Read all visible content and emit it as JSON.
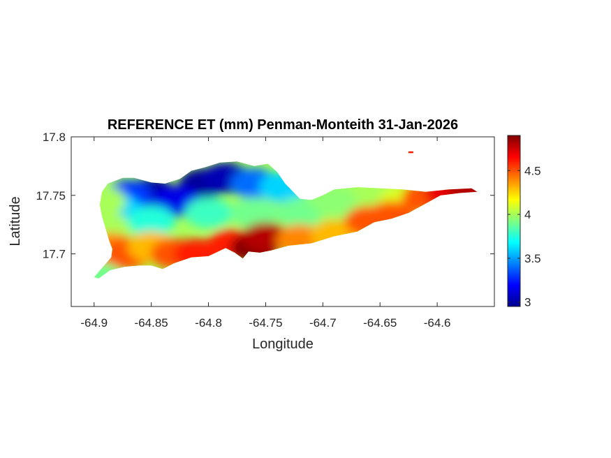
{
  "chart_data": {
    "type": "heatmap",
    "title": "REFERENCE ET (mm) Penman-Monteith 31-Jan-2026",
    "xlabel": "Longitude",
    "ylabel": "Latitude",
    "xlim": [
      -64.92,
      -64.55
    ],
    "ylim": [
      17.655,
      17.8
    ],
    "x_ticks": [
      -64.9,
      -64.85,
      -64.8,
      -64.75,
      -64.7,
      -64.65,
      -64.6
    ],
    "x_tick_labels": [
      "-64.9",
      "-64.85",
      "-64.8",
      "-64.75",
      "-64.7",
      "-64.65",
      "-64.6"
    ],
    "y_ticks": [
      17.7,
      17.75,
      17.8
    ],
    "y_tick_labels": [
      "17.7",
      "17.75",
      "17.8"
    ],
    "colorbar": {
      "colormap": "jet",
      "range": [
        2.95,
        4.9
      ],
      "ticks": [
        3,
        3.5,
        4,
        4.5
      ],
      "tick_labels": [
        "3",
        "3.5",
        "4",
        "4.5"
      ]
    },
    "grid": false,
    "region_outline": [
      [
        -64.9,
        17.68
      ],
      [
        -64.893,
        17.688
      ],
      [
        -64.885,
        17.697
      ],
      [
        -64.884,
        17.704
      ],
      [
        -64.887,
        17.712
      ],
      [
        -64.89,
        17.722
      ],
      [
        -64.893,
        17.732
      ],
      [
        -64.895,
        17.742
      ],
      [
        -64.893,
        17.753
      ],
      [
        -64.888,
        17.76
      ],
      [
        -64.875,
        17.765
      ],
      [
        -64.865,
        17.765
      ],
      [
        -64.85,
        17.761
      ],
      [
        -64.838,
        17.76
      ],
      [
        -64.825,
        17.764
      ],
      [
        -64.815,
        17.771
      ],
      [
        -64.803,
        17.774
      ],
      [
        -64.79,
        17.778
      ],
      [
        -64.775,
        17.779
      ],
      [
        -64.76,
        17.775
      ],
      [
        -64.748,
        17.777
      ],
      [
        -64.74,
        17.77
      ],
      [
        -64.733,
        17.76
      ],
      [
        -64.725,
        17.752
      ],
      [
        -64.72,
        17.747
      ],
      [
        -64.71,
        17.746
      ],
      [
        -64.7,
        17.75
      ],
      [
        -64.69,
        17.755
      ],
      [
        -64.67,
        17.757
      ],
      [
        -64.65,
        17.756
      ],
      [
        -64.63,
        17.755
      ],
      [
        -64.61,
        17.753
      ],
      [
        -64.59,
        17.755
      ],
      [
        -64.57,
        17.756
      ],
      [
        -64.565,
        17.753
      ],
      [
        -64.58,
        17.752
      ],
      [
        -64.597,
        17.75
      ],
      [
        -64.61,
        17.743
      ],
      [
        -64.625,
        17.735
      ],
      [
        -64.64,
        17.73
      ],
      [
        -64.655,
        17.727
      ],
      [
        -64.67,
        17.719
      ],
      [
        -64.69,
        17.715
      ],
      [
        -64.71,
        17.709
      ],
      [
        -64.73,
        17.707
      ],
      [
        -64.745,
        17.703
      ],
      [
        -64.755,
        17.701
      ],
      [
        -64.765,
        17.702
      ],
      [
        -64.77,
        17.696
      ],
      [
        -64.777,
        17.701
      ],
      [
        -64.785,
        17.705
      ],
      [
        -64.8,
        17.698
      ],
      [
        -64.815,
        17.697
      ],
      [
        -64.83,
        17.692
      ],
      [
        -64.84,
        17.687
      ],
      [
        -64.85,
        17.69
      ],
      [
        -64.86,
        17.69
      ],
      [
        -64.873,
        17.689
      ],
      [
        -64.886,
        17.686
      ],
      [
        -64.896,
        17.679
      ]
    ],
    "islet": [
      -64.623,
      17.787
    ],
    "value_field": [
      {
        "x": -64.85,
        "y": 17.752,
        "value": 3.0
      },
      {
        "x": -64.805,
        "y": 17.76,
        "value": 3.0
      },
      {
        "x": -64.785,
        "y": 17.765,
        "value": 3.05
      },
      {
        "x": -64.828,
        "y": 17.745,
        "value": 3.15
      },
      {
        "x": -64.87,
        "y": 17.75,
        "value": 3.3
      },
      {
        "x": -64.76,
        "y": 17.76,
        "value": 3.4
      },
      {
        "x": -64.735,
        "y": 17.757,
        "value": 3.6
      },
      {
        "x": -64.88,
        "y": 17.738,
        "value": 3.6
      },
      {
        "x": -64.85,
        "y": 17.728,
        "value": 3.75
      },
      {
        "x": -64.8,
        "y": 17.735,
        "value": 3.8
      },
      {
        "x": -64.76,
        "y": 17.735,
        "value": 3.9
      },
      {
        "x": -64.72,
        "y": 17.735,
        "value": 3.9
      },
      {
        "x": -64.69,
        "y": 17.745,
        "value": 3.95
      },
      {
        "x": -64.65,
        "y": 17.748,
        "value": 4.0
      },
      {
        "x": -64.63,
        "y": 17.745,
        "value": 4.1
      },
      {
        "x": -64.893,
        "y": 17.745,
        "value": 4.0
      },
      {
        "x": -64.89,
        "y": 17.723,
        "value": 4.0
      },
      {
        "x": -64.898,
        "y": 17.682,
        "value": 3.9
      },
      {
        "x": -64.885,
        "y": 17.705,
        "value": 4.4
      },
      {
        "x": -64.87,
        "y": 17.7,
        "value": 4.5
      },
      {
        "x": -64.85,
        "y": 17.706,
        "value": 4.3
      },
      {
        "x": -64.83,
        "y": 17.7,
        "value": 4.5
      },
      {
        "x": -64.81,
        "y": 17.7,
        "value": 4.6
      },
      {
        "x": -64.78,
        "y": 17.708,
        "value": 4.6
      },
      {
        "x": -64.76,
        "y": 17.705,
        "value": 4.9
      },
      {
        "x": -64.75,
        "y": 17.714,
        "value": 4.8
      },
      {
        "x": -64.72,
        "y": 17.712,
        "value": 4.4
      },
      {
        "x": -64.69,
        "y": 17.716,
        "value": 4.3
      },
      {
        "x": -64.66,
        "y": 17.728,
        "value": 4.5
      },
      {
        "x": -64.64,
        "y": 17.732,
        "value": 4.5
      },
      {
        "x": -64.61,
        "y": 17.748,
        "value": 4.5
      },
      {
        "x": -64.59,
        "y": 17.752,
        "value": 4.7
      },
      {
        "x": -64.57,
        "y": 17.755,
        "value": 4.8
      }
    ]
  }
}
